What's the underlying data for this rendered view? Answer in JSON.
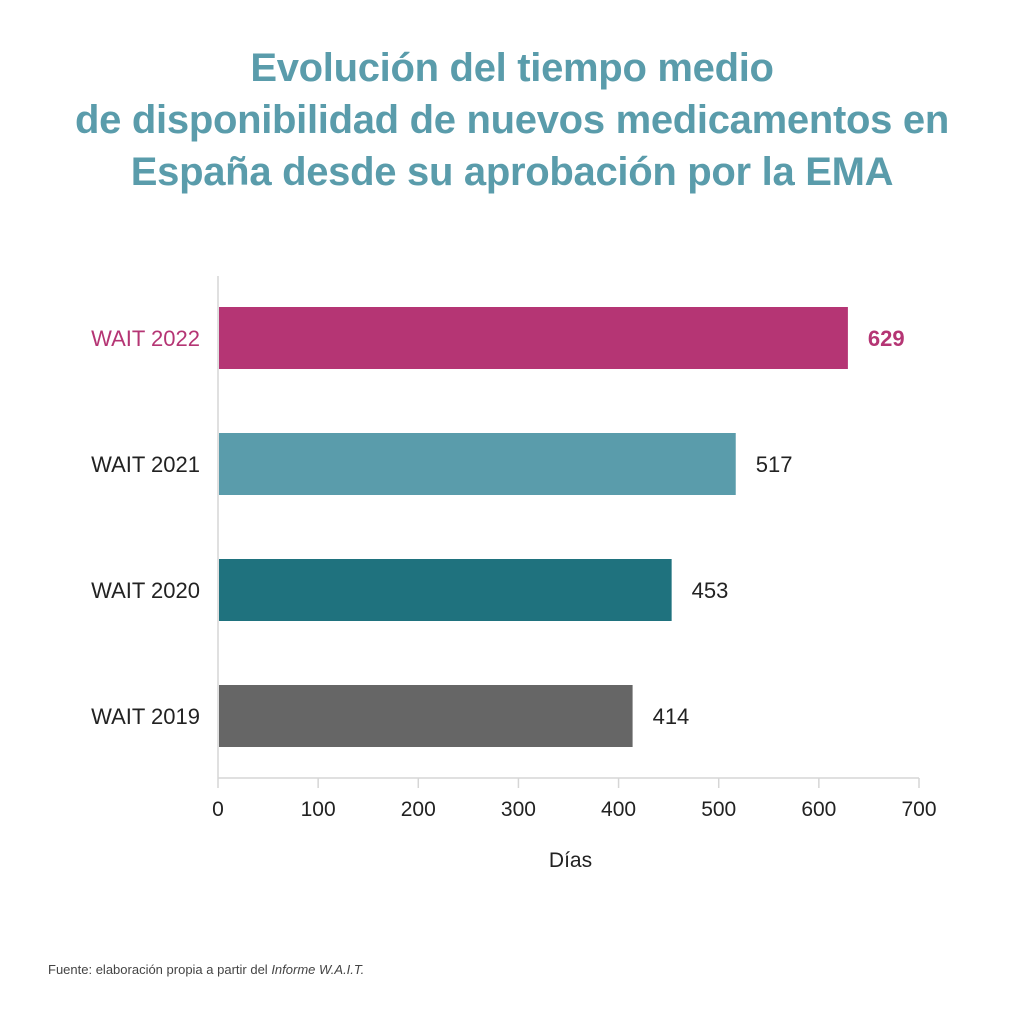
{
  "title_lines": [
    "Evolución del tiempo medio",
    "de disponibilidad de nuevos medicamentos en",
    "España desde su aprobación por la EMA"
  ],
  "chart_data": {
    "type": "bar",
    "orientation": "horizontal",
    "title": "Evolución del tiempo medio de disponibilidad de nuevos medicamentos en España desde su aprobación por la EMA",
    "categories": [
      "WAIT 2022",
      "WAIT 2021",
      "WAIT 2020",
      "WAIT 2019"
    ],
    "values": [
      629,
      517,
      453,
      414
    ],
    "value_labels": [
      "629",
      "517",
      "453",
      "414"
    ],
    "colors": [
      "#b53574",
      "#5a9cab",
      "#1f727e",
      "#666666"
    ],
    "highlight_category": "WAIT 2022",
    "highlight_color": "#b53574",
    "xlabel": "Días",
    "ylabel": "",
    "xlim": [
      0,
      700
    ],
    "xticks": [
      "0",
      "100",
      "200",
      "300",
      "400",
      "500",
      "600",
      "700"
    ],
    "grid": false,
    "legend": "none"
  },
  "source": {
    "prefix": "Fuente: elaboración propia a partir del ",
    "italic": "Informe W.A.I.T."
  }
}
